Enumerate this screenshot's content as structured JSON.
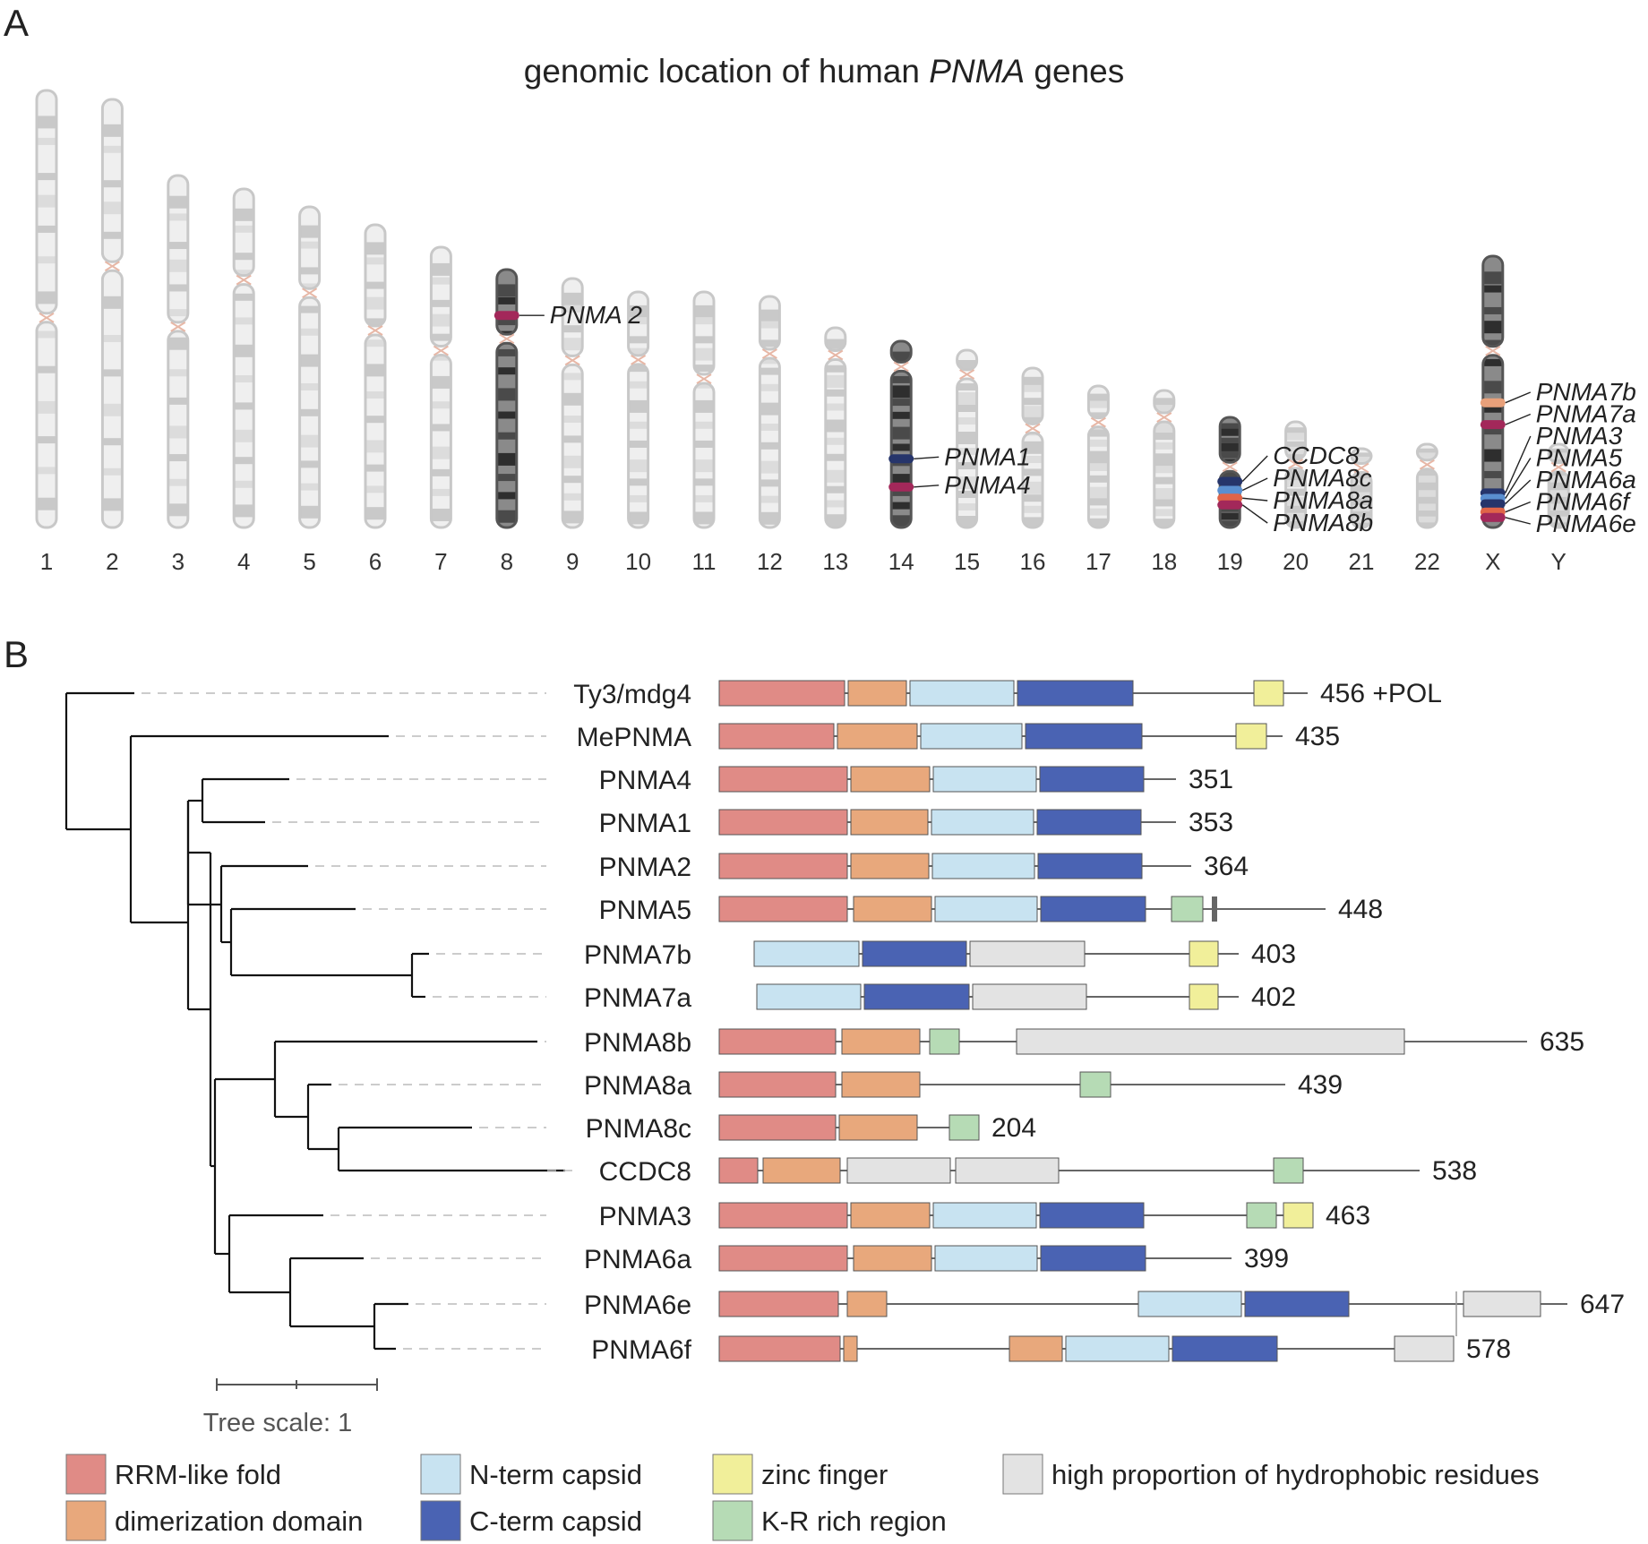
{
  "panel_a": {
    "letter": "A",
    "title_pre": "genomic location of human ",
    "title_gene": "PNMA",
    "title_post": " genes",
    "chromosomes": [
      {
        "name": "1",
        "len": 490,
        "cen": 0.52,
        "highlight": false
      },
      {
        "name": "2",
        "len": 480,
        "cen": 0.39,
        "highlight": false
      },
      {
        "name": "3",
        "len": 395,
        "cen": 0.43,
        "highlight": false
      },
      {
        "name": "4",
        "len": 380,
        "cen": 0.27,
        "highlight": false
      },
      {
        "name": "5",
        "len": 360,
        "cen": 0.27,
        "highlight": false
      },
      {
        "name": "6",
        "len": 340,
        "cen": 0.35,
        "highlight": false
      },
      {
        "name": "7",
        "len": 315,
        "cen": 0.37,
        "highlight": false
      },
      {
        "name": "8",
        "len": 290,
        "cen": 0.27,
        "highlight": true
      },
      {
        "name": "9",
        "len": 280,
        "cen": 0.33,
        "highlight": false
      },
      {
        "name": "10",
        "len": 265,
        "cen": 0.29,
        "highlight": false
      },
      {
        "name": "11",
        "len": 265,
        "cen": 0.37,
        "highlight": false
      },
      {
        "name": "12",
        "len": 260,
        "cen": 0.25,
        "highlight": false
      },
      {
        "name": "13",
        "len": 225,
        "cen": 0.14,
        "highlight": false
      },
      {
        "name": "14",
        "len": 210,
        "cen": 0.14,
        "highlight": true
      },
      {
        "name": "15",
        "len": 200,
        "cen": 0.14,
        "highlight": false
      },
      {
        "name": "16",
        "len": 180,
        "cen": 0.38,
        "highlight": false
      },
      {
        "name": "17",
        "len": 160,
        "cen": 0.26,
        "highlight": false
      },
      {
        "name": "18",
        "len": 155,
        "cen": 0.2,
        "highlight": false
      },
      {
        "name": "19",
        "len": 125,
        "cen": 0.45,
        "highlight": true
      },
      {
        "name": "20",
        "len": 120,
        "cen": 0.4,
        "highlight": false
      },
      {
        "name": "21",
        "len": 90,
        "cen": 0.25,
        "highlight": false
      },
      {
        "name": "22",
        "len": 95,
        "cen": 0.25,
        "highlight": false
      },
      {
        "name": "X",
        "len": 305,
        "cen": 0.35,
        "highlight": true
      },
      {
        "name": "Y",
        "len": 95,
        "cen": 0.28,
        "highlight": false
      }
    ],
    "genes": [
      {
        "name": "PNMA 2",
        "chrom": "8",
        "color": "#a3285a",
        "frac": 0.18
      },
      {
        "name": "PNMA1",
        "chrom": "14",
        "color": "#26356b",
        "frac": 0.63
      },
      {
        "name": "PNMA4",
        "chrom": "14",
        "color": "#a3285a",
        "frac": 0.78
      },
      {
        "name": "CCDC8",
        "chrom": "19",
        "color": "#26356b",
        "frac": 0.58
      },
      {
        "name": "PNMA8c",
        "chrom": "19",
        "color": "#5a8fd0",
        "frac": 0.66
      },
      {
        "name": "PNMA8a",
        "chrom": "19",
        "color": "#e06448",
        "frac": 0.73
      },
      {
        "name": "PNMA8b",
        "chrom": "19",
        "color": "#a3285a",
        "frac": 0.79
      },
      {
        "name": "PNMA7b",
        "chrom": "X",
        "color": "#e8a07a",
        "frac": 0.54
      },
      {
        "name": "PNMA7a",
        "chrom": "X",
        "color": "#a3285a",
        "frac": 0.62
      },
      {
        "name": "PNMA3",
        "chrom": "X",
        "color": "#26356b",
        "frac": 0.87
      },
      {
        "name": "PNMA5",
        "chrom": "X",
        "color": "#5a8fd0",
        "frac": 0.89
      },
      {
        "name": "PNMA6a",
        "chrom": "X",
        "color": "#26356b",
        "frac": 0.91
      },
      {
        "name": "PNMA6f",
        "chrom": "X",
        "color": "#e06448",
        "frac": 0.94
      },
      {
        "name": "PNMA6e",
        "chrom": "X",
        "color": "#a3285a",
        "frac": 0.96
      }
    ]
  },
  "panel_b": {
    "letter": "B",
    "tree_scale_label": "Tree scale: 1",
    "domain_colors": {
      "rrm": "#e08b86",
      "dim": "#e8a87c",
      "ncap": "#c8e3f1",
      "ccap": "#4a63b3",
      "zinc": "#f1ef9a",
      "kr": "#b6dbb5",
      "hyd": "#e3e3e3"
    },
    "rows": [
      {
        "name": "Ty3/mdg4",
        "length": "456 +POL",
        "end": 1460,
        "domains": [
          {
            "t": "rrm",
            "a": 803,
            "b": 943
          },
          {
            "t": "dim",
            "a": 947,
            "b": 1012
          },
          {
            "t": "ncap",
            "a": 1016,
            "b": 1132
          },
          {
            "t": "ccap",
            "a": 1136,
            "b": 1265
          },
          {
            "t": "zinc",
            "a": 1400,
            "b": 1433
          }
        ]
      },
      {
        "name": "MePNMA",
        "length": "435",
        "end": 1432,
        "domains": [
          {
            "t": "rrm",
            "a": 803,
            "b": 931
          },
          {
            "t": "dim",
            "a": 935,
            "b": 1024
          },
          {
            "t": "ncap",
            "a": 1028,
            "b": 1141
          },
          {
            "t": "ccap",
            "a": 1145,
            "b": 1275
          },
          {
            "t": "zinc",
            "a": 1380,
            "b": 1414
          }
        ]
      },
      {
        "name": "PNMA4",
        "length": "351",
        "end": 1313,
        "domains": [
          {
            "t": "rrm",
            "a": 803,
            "b": 946
          },
          {
            "t": "dim",
            "a": 950,
            "b": 1038
          },
          {
            "t": "ncap",
            "a": 1042,
            "b": 1157
          },
          {
            "t": "ccap",
            "a": 1161,
            "b": 1277
          }
        ]
      },
      {
        "name": "PNMA1",
        "length": "353",
        "end": 1313,
        "domains": [
          {
            "t": "rrm",
            "a": 803,
            "b": 946
          },
          {
            "t": "dim",
            "a": 950,
            "b": 1036
          },
          {
            "t": "ncap",
            "a": 1040,
            "b": 1154
          },
          {
            "t": "ccap",
            "a": 1158,
            "b": 1274
          }
        ]
      },
      {
        "name": "PNMA2",
        "length": "364",
        "end": 1330,
        "domains": [
          {
            "t": "rrm",
            "a": 803,
            "b": 946
          },
          {
            "t": "dim",
            "a": 950,
            "b": 1037
          },
          {
            "t": "ncap",
            "a": 1041,
            "b": 1155
          },
          {
            "t": "ccap",
            "a": 1159,
            "b": 1275
          }
        ]
      },
      {
        "name": "PNMA5",
        "length": "448",
        "end": 1480,
        "domains": [
          {
            "t": "rrm",
            "a": 803,
            "b": 946
          },
          {
            "t": "dim",
            "a": 953,
            "b": 1040
          },
          {
            "t": "ncap",
            "a": 1044,
            "b": 1158
          },
          {
            "t": "ccap",
            "a": 1162,
            "b": 1279
          },
          {
            "t": "kr",
            "a": 1308,
            "b": 1343
          }
        ]
      },
      {
        "name": "PNMA7b",
        "length": "403",
        "end": 1383,
        "domains": [
          {
            "t": "ncap",
            "a": 842,
            "b": 959
          },
          {
            "t": "ccap",
            "a": 963,
            "b": 1079
          },
          {
            "t": "hyd",
            "a": 1083,
            "b": 1211
          },
          {
            "t": "zinc",
            "a": 1328,
            "b": 1360
          }
        ]
      },
      {
        "name": "PNMA7a",
        "length": "402",
        "end": 1383,
        "domains": [
          {
            "t": "ncap",
            "a": 845,
            "b": 961
          },
          {
            "t": "ccap",
            "a": 965,
            "b": 1082
          },
          {
            "t": "hyd",
            "a": 1086,
            "b": 1213
          },
          {
            "t": "zinc",
            "a": 1328,
            "b": 1360
          }
        ]
      },
      {
        "name": "PNMA8b",
        "length": "635",
        "end": 1705,
        "domains": [
          {
            "t": "rrm",
            "a": 803,
            "b": 933
          },
          {
            "t": "dim",
            "a": 940,
            "b": 1027
          },
          {
            "t": "kr",
            "a": 1038,
            "b": 1071
          },
          {
            "t": "hyd",
            "a": 1135,
            "b": 1568
          }
        ]
      },
      {
        "name": "PNMA8a",
        "length": "439",
        "end": 1435,
        "domains": [
          {
            "t": "rrm",
            "a": 803,
            "b": 933
          },
          {
            "t": "dim",
            "a": 940,
            "b": 1027
          },
          {
            "t": "kr",
            "a": 1206,
            "b": 1240
          }
        ]
      },
      {
        "name": "PNMA8c",
        "length": "204",
        "end": 1093,
        "domains": [
          {
            "t": "rrm",
            "a": 803,
            "b": 933
          },
          {
            "t": "dim",
            "a": 937,
            "b": 1024
          },
          {
            "t": "kr",
            "a": 1060,
            "b": 1093
          }
        ]
      },
      {
        "name": "CCDC8",
        "length": "538",
        "end": 1585,
        "domains": [
          {
            "t": "rrm",
            "a": 803,
            "b": 846
          },
          {
            "t": "dim",
            "a": 852,
            "b": 938
          },
          {
            "t": "hyd",
            "a": 946,
            "b": 1061
          },
          {
            "t": "hyd",
            "a": 1067,
            "b": 1182
          },
          {
            "t": "kr",
            "a": 1422,
            "b": 1455
          }
        ]
      },
      {
        "name": "PNMA3",
        "length": "463",
        "end": 1466,
        "domains": [
          {
            "t": "rrm",
            "a": 803,
            "b": 946
          },
          {
            "t": "dim",
            "a": 950,
            "b": 1038
          },
          {
            "t": "ncap",
            "a": 1042,
            "b": 1157
          },
          {
            "t": "ccap",
            "a": 1161,
            "b": 1277
          },
          {
            "t": "kr",
            "a": 1392,
            "b": 1425
          },
          {
            "t": "zinc",
            "a": 1433,
            "b": 1466
          }
        ]
      },
      {
        "name": "PNMA6a",
        "length": "399",
        "end": 1375,
        "domains": [
          {
            "t": "rrm",
            "a": 803,
            "b": 946
          },
          {
            "t": "dim",
            "a": 953,
            "b": 1040
          },
          {
            "t": "ncap",
            "a": 1044,
            "b": 1158
          },
          {
            "t": "ccap",
            "a": 1162,
            "b": 1279
          }
        ]
      },
      {
        "name": "PNMA6e",
        "length": "647",
        "end": 1750,
        "domains": [
          {
            "t": "rrm",
            "a": 803,
            "b": 936
          },
          {
            "t": "dim",
            "a": 946,
            "b": 990
          },
          {
            "t": "ncap",
            "a": 1271,
            "b": 1386
          },
          {
            "t": "ccap",
            "a": 1390,
            "b": 1506
          },
          {
            "t": "hyd",
            "a": 1634,
            "b": 1720
          }
        ]
      },
      {
        "name": "PNMA6f",
        "length": "578",
        "end": 1623,
        "domains": [
          {
            "t": "rrm",
            "a": 803,
            "b": 938
          },
          {
            "t": "dim",
            "a": 942,
            "b": 957
          },
          {
            "t": "dim",
            "a": 1127,
            "b": 1186
          },
          {
            "t": "ncap",
            "a": 1190,
            "b": 1305
          },
          {
            "t": "ccap",
            "a": 1309,
            "b": 1426
          },
          {
            "t": "hyd",
            "a": 1557,
            "b": 1623
          }
        ]
      }
    ],
    "legend": [
      {
        "key": "rrm",
        "label": "RRM-like fold"
      },
      {
        "key": "dim",
        "label": "dimerization domain"
      },
      {
        "key": "ncap",
        "label": "N-term capsid"
      },
      {
        "key": "ccap",
        "label": "C-term capsid"
      },
      {
        "key": "zinc",
        "label": "zinc finger"
      },
      {
        "key": "kr",
        "label": "K-R rich region"
      },
      {
        "key": "hyd",
        "label": "high proportion of hydrophobic residues"
      }
    ]
  }
}
